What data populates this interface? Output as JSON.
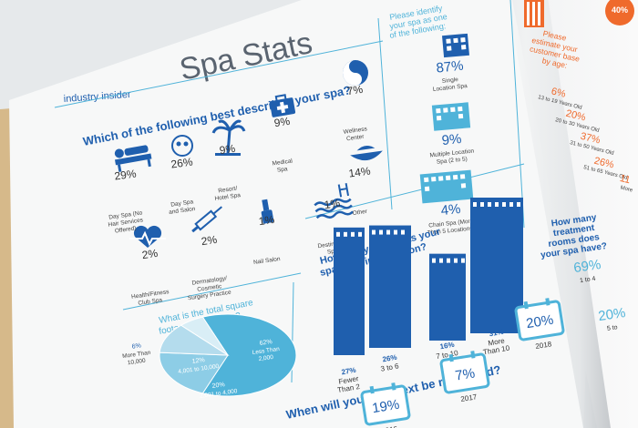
{
  "colors": {
    "blue": "#1f5fae",
    "light_blue": "#4fb3d9",
    "orange": "#ef6a2c",
    "gray": "#5a6470",
    "page": "#f7f8f8"
  },
  "page_title": "Spa Stats",
  "section_tag": "industry insider",
  "q_describes": "Which of the following best describes your spa?",
  "spa_types": [
    {
      "pct": "29%",
      "label": [
        "Day Spa (No",
        "Hair Services",
        "Offered)"
      ],
      "icon": "massage-icon"
    },
    {
      "pct": "26%",
      "label": [
        "Day Spa",
        "and Salon"
      ],
      "icon": "face-mask-icon"
    },
    {
      "pct": "9%",
      "label": [
        "Resort/",
        "Hotel Spa"
      ],
      "icon": "palm-tree-icon"
    },
    {
      "pct": "9%",
      "label": [
        "Medical",
        "Spa"
      ],
      "icon": "medical-bag-icon"
    },
    {
      "pct": "7%",
      "label": [
        "Wellness",
        "Center"
      ],
      "icon": "yin-yang-icon"
    },
    {
      "pct": "1%",
      "label": [
        "Destination",
        "Spa"
      ],
      "icon": "pool-icon"
    },
    {
      "pct": "14%",
      "label": [
        "Other"
      ],
      "icon": "bowl-icon"
    },
    {
      "pct": "2%",
      "label": [
        "Health/Fitness",
        "Club Spa"
      ],
      "icon": "heartbeat-icon"
    },
    {
      "pct": "2%",
      "label": [
        "Dermatology/",
        "Cosmetic",
        "Surgery Practice"
      ],
      "icon": "syringe-icon"
    },
    {
      "pct": "1%",
      "label": [
        "Nail Salon"
      ],
      "icon": "nail-polish-icon"
    }
  ],
  "q_identify": [
    "Please identify",
    "your spa as one",
    "of the following:"
  ],
  "location_types": [
    {
      "pct": "87%",
      "label": [
        "Single",
        "Location Spa"
      ]
    },
    {
      "pct": "9%",
      "label": [
        "Multiple Location",
        "Spa (2 to 5)"
      ]
    },
    {
      "pct": "4%",
      "label": [
        "Chain Spa (More",
        "Than 5 Locations)"
      ]
    }
  ],
  "q_footage": [
    "What is the total square",
    "footage of your spa?"
  ],
  "footage": [
    {
      "pct": "62%",
      "label": [
        "Less Than",
        "2,000"
      ]
    },
    {
      "pct": "20%",
      "label": [
        "2,001 to 4,000"
      ]
    },
    {
      "pct": "12%",
      "label": [
        "4,001 to 10,000"
      ]
    },
    {
      "pct": "6%",
      "label": [
        "More Than",
        "10,000"
      ]
    }
  ],
  "q_years": [
    "How many years has your",
    "spa been in operation?"
  ],
  "years": [
    {
      "pct": "27%",
      "label": [
        "Fewer",
        "Than 2"
      ]
    },
    {
      "pct": "26%",
      "label": [
        "3 to 6"
      ]
    },
    {
      "pct": "16%",
      "label": [
        "7 to 10"
      ]
    },
    {
      "pct": "31%",
      "label": [
        "More",
        "Than 10"
      ]
    }
  ],
  "q_renovate": "When will your spa next be renovated?",
  "renovate": [
    {
      "pct": "19%",
      "year": "2016"
    },
    {
      "pct": "7%",
      "year": "2017"
    },
    {
      "pct": "20%",
      "year": "2018"
    }
  ],
  "q_rooms": [
    "How many",
    "treatment",
    "rooms does",
    "your spa have?"
  ],
  "rooms": [
    {
      "pct": "69%",
      "label": "1 to 4"
    },
    {
      "pct": "20%",
      "label": "5 to"
    }
  ],
  "q_age": [
    "Please",
    "estimate your",
    "customer base",
    "by age:"
  ],
  "ages": [
    {
      "pct": "6%",
      "label": "13 to 19 Years Old"
    },
    {
      "pct": "20%",
      "label": "20 to 30 Years Old"
    },
    {
      "pct": "37%",
      "label": "31 to 50 Years Old"
    },
    {
      "pct": "26%",
      "label": "51 to 65 Years Old"
    },
    {
      "pct": "11",
      "label": "More"
    }
  ],
  "right_top_pct": "40%"
}
